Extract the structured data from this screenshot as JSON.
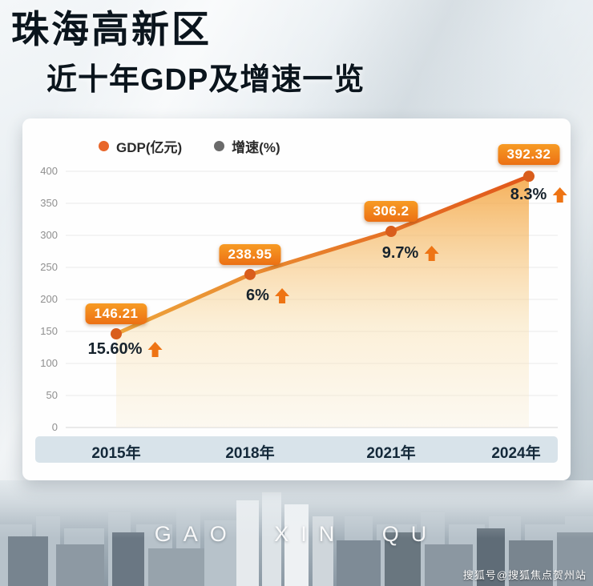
{
  "title": {
    "line1": "珠海高新区",
    "line2": "近十年GDP及增速一览"
  },
  "legend": {
    "items": [
      {
        "label": "GDP(亿元)",
        "color": "#e8662a"
      },
      {
        "label": "增速(%)",
        "color": "#6a6a6a"
      }
    ]
  },
  "chart_data": {
    "type": "line",
    "title": "珠海高新区近十年GDP及增速一览",
    "categories": [
      "2015年",
      "2018年",
      "2021年",
      "2024年"
    ],
    "series": [
      {
        "name": "GDP(亿元)",
        "values": [
          146.21,
          238.95,
          306.2,
          392.32
        ],
        "color": "#e8701f"
      },
      {
        "name": "增速(%)",
        "values": [
          15.6,
          6,
          9.7,
          8.3
        ]
      }
    ],
    "gdp_labels": [
      "146.21",
      "238.95",
      "306.2",
      "392.32"
    ],
    "growth_labels": [
      "15.60%",
      "6%",
      "9.7%",
      "8.3%"
    ],
    "ylim": [
      0,
      400
    ],
    "yticks": [
      0,
      50,
      100,
      150,
      200,
      250,
      300,
      350,
      400
    ],
    "grid": true,
    "legend_position": "top",
    "area_fill": true,
    "line_color": "#e8701f",
    "accent_color": "#f08300"
  },
  "footer": {
    "city_watermark": "GAO XIN QU",
    "credit": "搜狐号@搜狐焦点贺州站"
  }
}
